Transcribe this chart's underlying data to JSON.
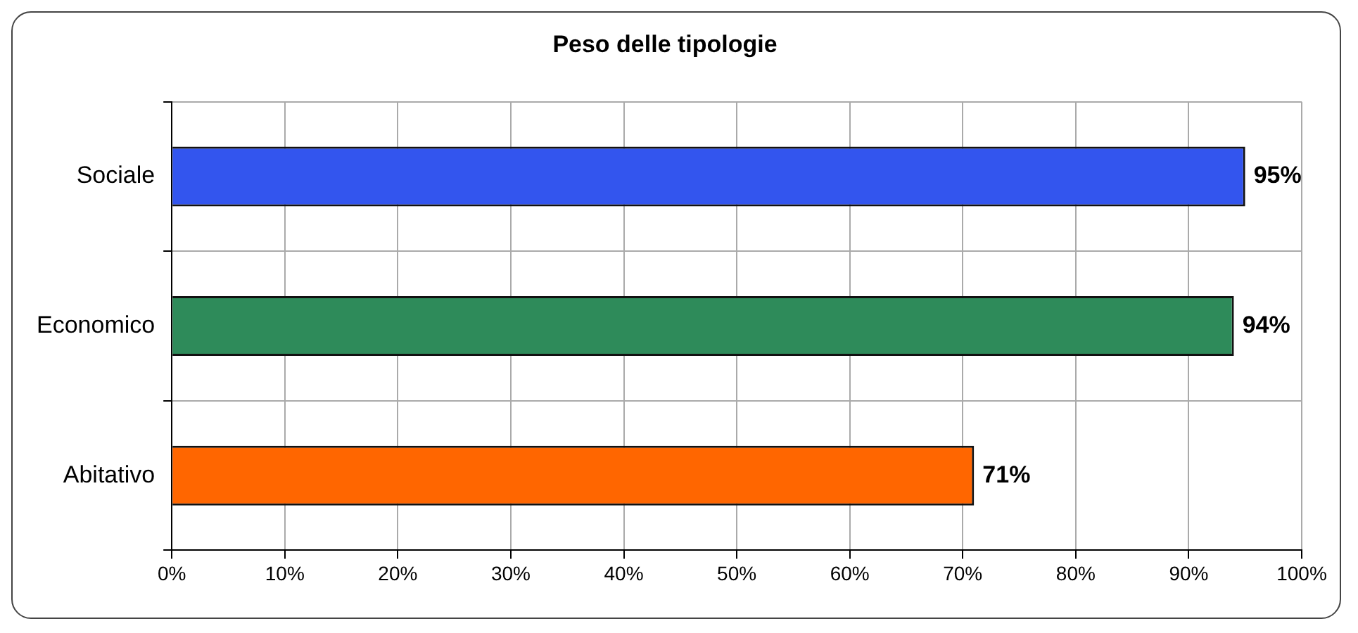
{
  "chart_data": {
    "type": "bar",
    "orientation": "horizontal",
    "title": "Peso delle tipologie",
    "categories": [
      "Sociale",
      "Economico",
      "Abitativo"
    ],
    "values": [
      95,
      94,
      71
    ],
    "colors": [
      "#3355ee",
      "#2e8b5a",
      "#ff6600"
    ],
    "value_labels": [
      "95%",
      "94%",
      "71%"
    ],
    "xlim": [
      0,
      100
    ],
    "xticks": [
      {
        "value": 0,
        "label": "0%"
      },
      {
        "value": 10,
        "label": "10%"
      },
      {
        "value": 20,
        "label": "20%"
      },
      {
        "value": 30,
        "label": "30%"
      },
      {
        "value": 40,
        "label": "40%"
      },
      {
        "value": 50,
        "label": "50%"
      },
      {
        "value": 60,
        "label": "60%"
      },
      {
        "value": 70,
        "label": "70%"
      },
      {
        "value": 80,
        "label": "80%"
      },
      {
        "value": 90,
        "label": "90%"
      },
      {
        "value": 100,
        "label": "100%"
      }
    ],
    "grid": true,
    "legend": false
  }
}
